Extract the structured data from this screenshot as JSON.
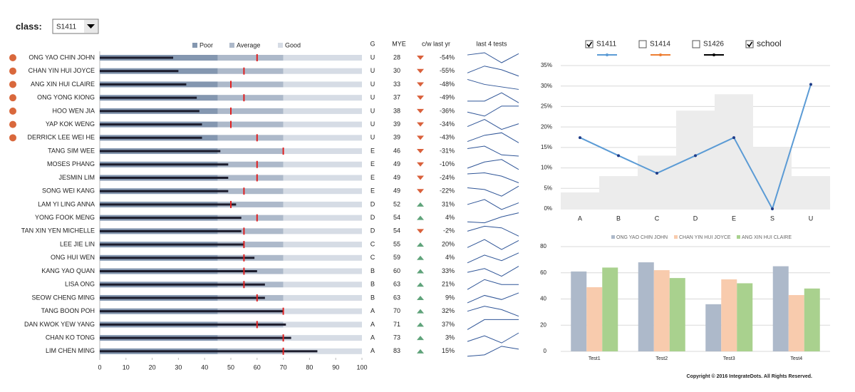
{
  "header": {
    "label": "class:",
    "value": "S1411"
  },
  "copyright": "Copyright © 2016 IntegrateDots. All Rights Reserved.",
  "chart_data": [
    {
      "type": "bullet",
      "columns": [
        "G",
        "MYE",
        "c/w last yr",
        "last 4 tests"
      ],
      "bands": [
        {
          "name": "Poor",
          "to": 45,
          "color": "#8497b0"
        },
        {
          "name": "Average",
          "to": 70,
          "color": "#adb9ca"
        },
        {
          "name": "Good",
          "to": 100,
          "color": "#d6dce5"
        }
      ],
      "categories": [
        "ONG YAO CHIN JOHN",
        "CHAN YIN HUI JOYCE",
        "ANG XIN HUI CLAIRE",
        "ONG YONG KIONG",
        "HOO WEN JIA",
        "YAP KOK WENG",
        "DERRICK LEE WEI HE",
        "TANG SIM WEE",
        "MOSES PHANG",
        "JESMIN LIM",
        "SONG WEI KANG",
        "LAM YI LING ANNA",
        "YONG FOOK MENG",
        "TAN XIN YEN MICHELLE",
        "LEE JIE LIN",
        "ONG HUI WEN",
        "KANG YAO QUAN",
        "LISA ONG",
        "SEOW CHENG MING",
        "TANG BOON POH",
        "DAN KWOK YEW YANG",
        "CHAN KO TONG",
        "LIM CHEN MING"
      ],
      "values": [
        28,
        30,
        33,
        37,
        38,
        39,
        39,
        46,
        49,
        49,
        49,
        52,
        54,
        54,
        55,
        59,
        60,
        63,
        63,
        70,
        71,
        73,
        83
      ],
      "bar_color": "#1c1c2c",
      "targets": [
        60,
        55,
        50,
        55,
        50,
        50,
        60,
        70,
        60,
        60,
        55,
        50,
        60,
        55,
        55,
        55,
        55,
        55,
        60,
        70,
        60,
        70,
        70
      ],
      "target_color": "#e02020",
      "alert": [
        true,
        true,
        true,
        true,
        true,
        true,
        true,
        false,
        false,
        false,
        false,
        false,
        false,
        false,
        false,
        false,
        false,
        false,
        false,
        false,
        false,
        false,
        false
      ],
      "alert_color": "#d9683c",
      "grades": [
        "U",
        "U",
        "U",
        "U",
        "U",
        "U",
        "U",
        "E",
        "E",
        "E",
        "E",
        "D",
        "D",
        "D",
        "C",
        "C",
        "B",
        "B",
        "B",
        "A",
        "A",
        "A",
        "A"
      ],
      "change": [
        -54,
        -55,
        -48,
        -49,
        -36,
        -34,
        -43,
        -31,
        -10,
        -24,
        -22,
        31,
        4,
        -2,
        20,
        4,
        33,
        21,
        9,
        32,
        37,
        3,
        15
      ],
      "change_labels": [
        "-54%",
        "-55%",
        "-48%",
        "-49%",
        "-36%",
        "-34%",
        "-43%",
        "-31%",
        "-10%",
        "-24%",
        "-22%",
        "31%",
        "4%",
        "-2%",
        "20%",
        "4%",
        "33%",
        "21%",
        "9%",
        "32%",
        "37%",
        "3%",
        "15%"
      ],
      "up_color": "#5fa37a",
      "down_color": "#d9603b",
      "tests": [
        [
          61,
          68,
          36,
          65
        ],
        [
          49,
          62,
          55,
          43
        ],
        [
          64,
          56,
          52,
          48
        ],
        [
          40,
          40,
          50,
          38
        ],
        [
          42,
          38,
          48,
          48
        ],
        [
          40,
          45,
          38,
          42
        ],
        [
          45,
          50,
          52,
          44
        ],
        [
          50,
          52,
          45,
          44
        ],
        [
          45,
          50,
          52,
          44
        ],
        [
          52,
          53,
          50,
          44
        ],
        [
          50,
          48,
          40,
          52
        ],
        [
          55,
          58,
          52,
          56
        ],
        [
          45,
          44,
          50,
          54
        ],
        [
          52,
          58,
          56,
          46
        ],
        [
          50,
          58,
          48,
          57
        ],
        [
          48,
          55,
          50,
          57
        ],
        [
          50,
          55,
          45,
          58
        ],
        [
          52,
          56,
          54,
          54
        ],
        [
          46,
          55,
          50,
          58
        ],
        [
          55,
          58,
          56,
          52
        ],
        [
          55,
          62,
          62,
          62
        ],
        [
          56,
          60,
          55,
          62
        ],
        [
          55,
          56,
          62,
          60
        ]
      ],
      "spark_color": "#2f5597",
      "xlim": [
        0,
        100
      ],
      "xticks": [
        0,
        10,
        20,
        30,
        40,
        50,
        60,
        70,
        80,
        90,
        100
      ]
    },
    {
      "type": "line",
      "categories": [
        "A",
        "B",
        "C",
        "D",
        "E",
        "S",
        "U"
      ],
      "series": [
        {
          "name": "S1411",
          "color": "#5b9bd5",
          "checked": true,
          "values": [
            17.4,
            13.0,
            8.7,
            13.0,
            17.4,
            0,
            30.4
          ]
        },
        {
          "name": "S1414",
          "color": "#ed7d31",
          "checked": false
        },
        {
          "name": "S1426",
          "color": "#000000",
          "checked": false
        },
        {
          "name": "school",
          "type": "area",
          "color": "#ececec",
          "checked": true,
          "values": [
            4,
            8,
            13,
            24,
            28,
            15,
            8
          ]
        }
      ],
      "ylim": [
        0,
        35
      ],
      "yticks": [
        {
          "value": 0,
          "label": "0%"
        },
        {
          "value": 5,
          "label": "5%"
        },
        {
          "value": 10,
          "label": "10%"
        },
        {
          "value": 15,
          "label": "15%"
        },
        {
          "value": 20,
          "label": "20%"
        },
        {
          "value": 25,
          "label": "25%"
        },
        {
          "value": 30,
          "label": "30%"
        },
        {
          "value": 35,
          "label": "35%"
        }
      ],
      "grid": true
    },
    {
      "type": "bar",
      "categories": [
        "Test1",
        "Test2",
        "Test3",
        "Test4"
      ],
      "series": [
        {
          "name": "ONG YAO CHIN JOHN",
          "color": "#adb9ca",
          "values": [
            61,
            68,
            36,
            65
          ]
        },
        {
          "name": "CHAN YIN HUI JOYCE",
          "color": "#f8cbad",
          "values": [
            49,
            62,
            55,
            43
          ]
        },
        {
          "name": "ANG XIN HUI CLAIRE",
          "color": "#a9d18e",
          "values": [
            64,
            56,
            52,
            48
          ]
        }
      ],
      "ylim": [
        0,
        80
      ],
      "yticks": [
        0,
        20,
        40,
        60,
        80
      ],
      "grid": true
    }
  ]
}
